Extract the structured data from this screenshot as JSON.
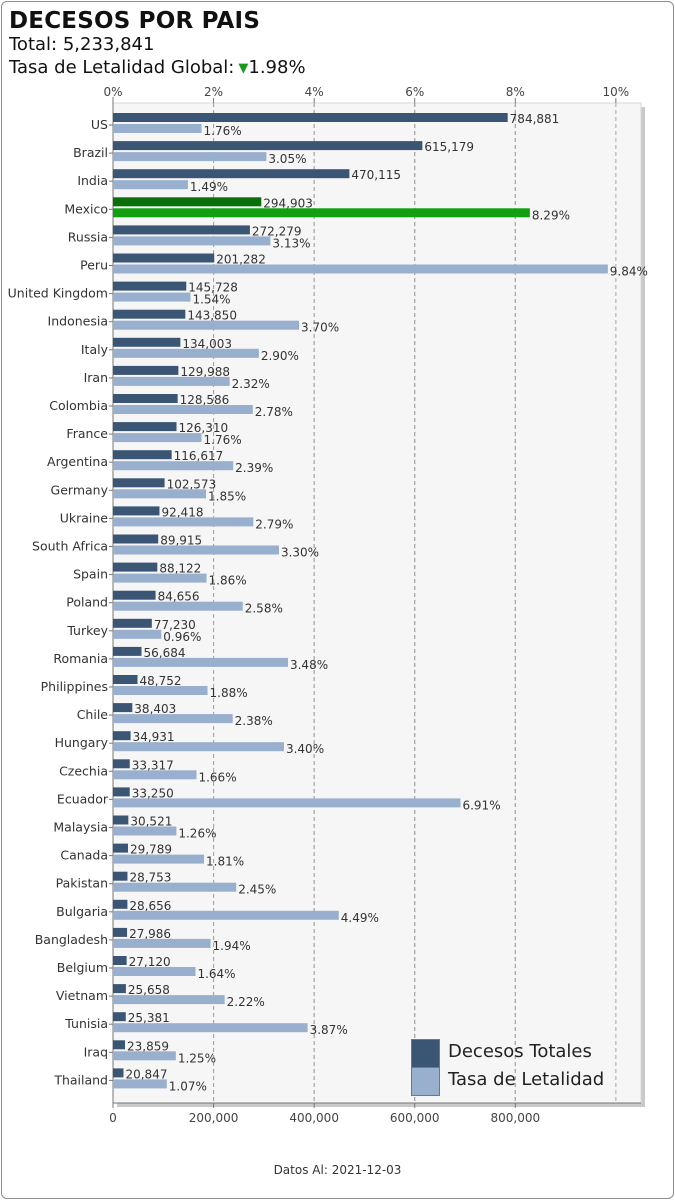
{
  "header": {
    "title": "DECESOS POR PAIS",
    "total_label": "Total:",
    "total_value": "5,233,841",
    "rate_label": "Tasa de Letalidad Global:",
    "rate_value": "1.98%",
    "rate_trend": "down"
  },
  "footer": {
    "label": "Datos Al:",
    "date": "2021-12-03"
  },
  "colors": {
    "deaths": "#3b5675",
    "rate": "#98afcd",
    "highlight_deaths": "#0a6e0a",
    "highlight_rate": "#10a010",
    "trend": "#1a9a1a"
  },
  "chart_data": {
    "type": "bar",
    "orientation": "horizontal",
    "highlight": "Mexico",
    "categories": [
      "US",
      "Brazil",
      "India",
      "Mexico",
      "Russia",
      "Peru",
      "United Kingdom",
      "Indonesia",
      "Italy",
      "Iran",
      "Colombia",
      "France",
      "Argentina",
      "Germany",
      "Ukraine",
      "South Africa",
      "Spain",
      "Poland",
      "Turkey",
      "Romania",
      "Philippines",
      "Chile",
      "Hungary",
      "Czechia",
      "Ecuador",
      "Malaysia",
      "Canada",
      "Pakistan",
      "Bulgaria",
      "Bangladesh",
      "Belgium",
      "Vietnam",
      "Tunisia",
      "Iraq",
      "Thailand"
    ],
    "series": [
      {
        "name": "Decesos Totales",
        "axis": "bottom",
        "values": [
          784881,
          615179,
          470115,
          294903,
          272279,
          201282,
          145728,
          143850,
          134003,
          129988,
          128586,
          126310,
          116617,
          102573,
          92418,
          89915,
          88122,
          84656,
          77230,
          56684,
          48752,
          38403,
          34931,
          33317,
          33250,
          30521,
          29789,
          28753,
          28656,
          27986,
          27120,
          25658,
          25381,
          23859,
          20847
        ],
        "labels": [
          "784,881",
          "615,179",
          "470,115",
          "294,903",
          "272,279",
          "201,282",
          "145,728",
          "143,850",
          "134,003",
          "129,988",
          "128,586",
          "126,310",
          "116,617",
          "102,573",
          "92,418",
          "89,915",
          "88,122",
          "84,656",
          "77,230",
          "56,684",
          "48,752",
          "38,403",
          "34,931",
          "33,317",
          "33,250",
          "30,521",
          "29,789",
          "28,753",
          "28,656",
          "27,986",
          "27,120",
          "25,658",
          "25,381",
          "23,859",
          "20,847"
        ]
      },
      {
        "name": "Tasa de Letalidad",
        "axis": "top",
        "values": [
          1.76,
          3.05,
          1.49,
          8.29,
          3.13,
          9.84,
          1.54,
          3.7,
          2.9,
          2.32,
          2.78,
          1.76,
          2.39,
          1.85,
          2.79,
          3.3,
          1.86,
          2.58,
          0.96,
          3.48,
          1.88,
          2.38,
          3.4,
          1.66,
          6.91,
          1.26,
          1.81,
          2.45,
          4.49,
          1.94,
          1.64,
          2.22,
          3.87,
          1.25,
          1.07
        ],
        "labels": [
          "1.76%",
          "3.05%",
          "1.49%",
          "8.29%",
          "3.13%",
          "9.84%",
          "1.54%",
          "3.70%",
          "2.90%",
          "2.32%",
          "2.78%",
          "1.76%",
          "2.39%",
          "1.85%",
          "2.79%",
          "3.30%",
          "1.86%",
          "2.58%",
          "0.96%",
          "3.48%",
          "1.88%",
          "2.38%",
          "3.40%",
          "1.66%",
          "6.91%",
          "1.26%",
          "1.81%",
          "2.45%",
          "4.49%",
          "1.94%",
          "1.64%",
          "2.22%",
          "3.87%",
          "1.25%",
          "1.07%"
        ]
      }
    ],
    "x_bottom": {
      "lim": [
        0,
        1050000
      ],
      "ticks": [
        0,
        200000,
        400000,
        600000,
        800000
      ],
      "tick_labels": [
        "0",
        "200,000",
        "400,000",
        "600,000",
        "800,000"
      ]
    },
    "x_top": {
      "lim": [
        0,
        10.5
      ],
      "ticks": [
        0,
        2,
        4,
        6,
        8,
        10
      ],
      "tick_labels": [
        "0%",
        "2%",
        "4%",
        "6%",
        "8%",
        "10%"
      ]
    },
    "grid": "vertical-dashed",
    "legend": {
      "position": "bottom-right",
      "entries": [
        "Decesos Totales",
        "Tasa de Letalidad"
      ]
    }
  }
}
